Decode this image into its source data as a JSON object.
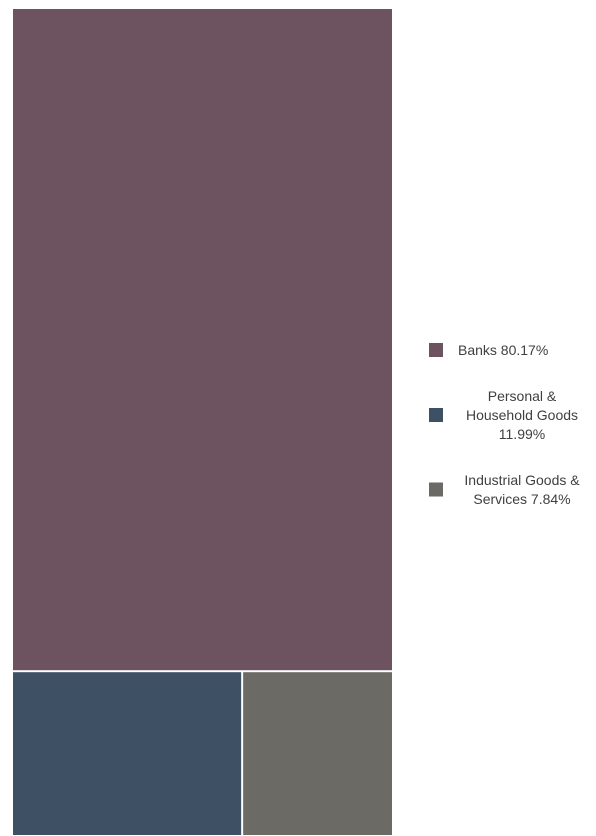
{
  "chart_data": {
    "type": "treemap",
    "title": "",
    "legend_position": "right",
    "series": [
      {
        "name": "Banks",
        "value": 80.17,
        "color": "#6d5260",
        "legend_lines": [
          "Banks 80.17%"
        ]
      },
      {
        "name": "Personal & Household Goods",
        "value": 11.99,
        "color": "#3d5064",
        "legend_lines": [
          "Personal &",
          "Household Goods",
          "11.99%"
        ]
      },
      {
        "name": "Industrial Goods & Services",
        "value": 7.84,
        "color": "#6c6a64",
        "legend_lines": [
          "Industrial Goods &",
          "Services 7.84%"
        ]
      }
    ]
  }
}
